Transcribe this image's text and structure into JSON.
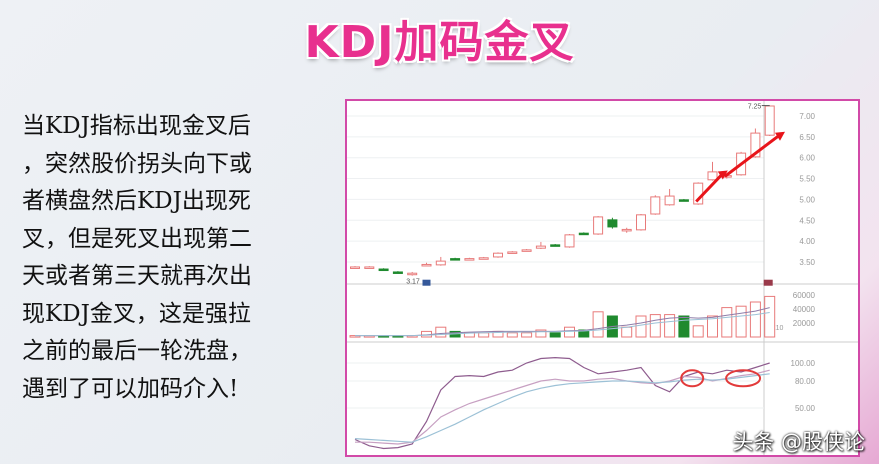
{
  "slide": {
    "title": "KDJ加码金叉",
    "paragraph_lines": [
      "当KDJ指标出现金叉后",
      "，突然股价拐头向下或",
      "者横盘然后KDJ出现死",
      "叉，但是死叉出现第二",
      "天或者第三天就再次出",
      "现KDJ金叉，这是强拉",
      "之前的最后一轮洗盘，",
      "遇到了可以加码介入!"
    ],
    "watermark": "头条 @股侠论"
  },
  "colors": {
    "title": "#e8308e",
    "up": "#e87a7a",
    "down": "#1f8a2e",
    "arrow": "#e8141a",
    "circle": "#e23a3a",
    "j_line": "#8e5c8e",
    "k_line": "#c7a0c2",
    "d_line": "#9cc1d6",
    "border": "#d24aa8"
  },
  "chart_data": [
    {
      "type": "candlestick",
      "ylim": [
        3.0,
        7.3
      ],
      "yticks": [
        "7.00",
        "6.50",
        "6.00",
        "5.50",
        "5.00",
        "4.50",
        "4.00",
        "3.50"
      ],
      "annotations": {
        "high_label": "7.25",
        "low_label": "3.17"
      },
      "open": [
        3.38,
        3.38,
        3.33,
        3.26,
        3.21,
        3.42,
        3.43,
        3.58,
        3.57,
        3.59,
        3.62,
        3.72,
        3.77,
        3.83,
        3.91,
        3.86,
        4.19,
        4.17,
        4.51,
        4.27,
        4.27,
        4.65,
        4.87,
        4.99,
        4.89,
        5.47,
        5.56,
        5.59,
        6.02,
        6.54
      ],
      "close": [
        3.38,
        3.38,
        3.31,
        3.24,
        3.23,
        3.44,
        3.52,
        3.56,
        3.58,
        3.6,
        3.71,
        3.74,
        3.79,
        3.88,
        3.89,
        4.15,
        4.17,
        4.58,
        4.34,
        4.28,
        4.63,
        5.06,
        5.08,
        4.97,
        5.39,
        5.66,
        5.57,
        6.11,
        6.59,
        7.24
      ],
      "high": [
        3.4,
        3.4,
        3.35,
        3.28,
        3.26,
        3.48,
        3.62,
        3.6,
        3.6,
        3.62,
        3.73,
        3.76,
        3.81,
        3.98,
        3.93,
        4.17,
        4.21,
        4.6,
        4.56,
        4.32,
        4.65,
        5.1,
        5.25,
        5.01,
        5.41,
        5.9,
        5.62,
        6.14,
        6.7,
        7.25
      ],
      "low": [
        3.36,
        3.36,
        3.29,
        3.22,
        3.17,
        3.4,
        3.41,
        3.54,
        3.55,
        3.57,
        3.6,
        3.7,
        3.75,
        3.81,
        3.87,
        3.84,
        4.15,
        4.15,
        4.3,
        4.2,
        4.25,
        4.63,
        4.85,
        4.95,
        4.87,
        5.45,
        5.5,
        5.57,
        6.0,
        6.52
      ]
    },
    {
      "type": "bar",
      "ylim": [
        0,
        70000
      ],
      "yticks": [
        "60000",
        "40000",
        "20000"
      ],
      "unit_label": "X10",
      "values": [
        2000,
        2000,
        2000,
        2000,
        2000,
        8000,
        14000,
        8000,
        6000,
        6000,
        8000,
        6000,
        6000,
        10000,
        6000,
        14000,
        10000,
        36000,
        30000,
        14000,
        30000,
        32000,
        32000,
        30000,
        16000,
        30000,
        42000,
        44000,
        50000,
        58000
      ],
      "ma": [
        [
          2000,
          2000,
          2000,
          2000,
          2000,
          3000,
          5000,
          6000,
          7000,
          7500,
          8000,
          8000,
          8000,
          8000,
          8000,
          9000,
          9500,
          12000,
          15000,
          17000,
          20000,
          24000,
          27000,
          28000,
          27000,
          28000,
          31000,
          34000,
          37000,
          42000
        ],
        [
          2000,
          2000,
          2000,
          2000,
          2000,
          2500,
          3500,
          4500,
          5500,
          6000,
          6500,
          7000,
          7000,
          7500,
          7500,
          8000,
          8500,
          10000,
          12000,
          14000,
          17000,
          20000,
          22000,
          24000,
          25000,
          26000,
          28000,
          30000,
          32000,
          35000
        ]
      ]
    },
    {
      "type": "line",
      "ylim": [
        0,
        115
      ],
      "yticks": [
        "100.00",
        "80.00",
        "50.00"
      ],
      "series": [
        {
          "values": [
            15,
            8,
            5,
            6,
            10,
            35,
            70,
            85,
            86,
            85,
            90,
            92,
            100,
            105,
            106,
            105,
            95,
            88,
            90,
            92,
            95,
            75,
            68,
            85,
            90,
            88,
            92,
            90,
            95,
            100
          ]
        },
        {
          "values": [
            12,
            12,
            11,
            10,
            12,
            25,
            40,
            48,
            55,
            60,
            65,
            70,
            75,
            80,
            82,
            80,
            80,
            82,
            83,
            80,
            78,
            77,
            80,
            85,
            84,
            80,
            83,
            86,
            88,
            92
          ]
        },
        {
          "values": [
            16,
            15,
            14,
            13,
            12,
            18,
            25,
            32,
            40,
            48,
            55,
            62,
            68,
            72,
            75,
            77,
            78,
            79,
            80,
            80,
            79,
            78,
            79,
            81,
            82,
            81,
            82,
            84,
            86,
            88
          ]
        }
      ],
      "highlight_circles_at_index": [
        24,
        27
      ]
    }
  ]
}
